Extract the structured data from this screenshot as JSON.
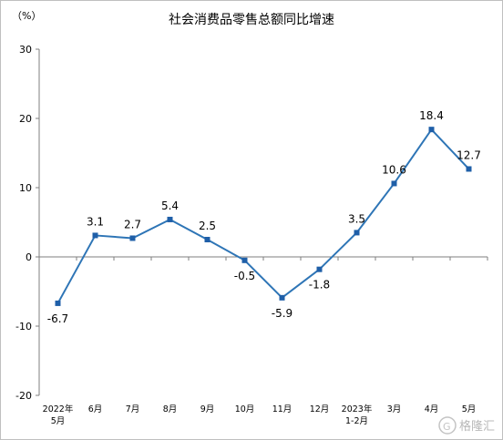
{
  "chart_data": {
    "type": "line",
    "title": "社会消费品零售总额同比增速",
    "unit_label": "（%）",
    "categories": [
      [
        "2022年",
        "5月"
      ],
      [
        "6月"
      ],
      [
        "7月"
      ],
      [
        "8月"
      ],
      [
        "9月"
      ],
      [
        "10月"
      ],
      [
        "11月"
      ],
      [
        "12月"
      ],
      [
        "2023年",
        "1-2月"
      ],
      [
        "3月"
      ],
      [
        "4月"
      ],
      [
        "5月"
      ]
    ],
    "values": [
      -6.7,
      3.1,
      2.7,
      5.4,
      2.5,
      -0.5,
      -5.9,
      -1.8,
      3.5,
      10.6,
      18.4,
      12.7
    ],
    "data_labels": [
      "-6.7",
      "3.1",
      "2.7",
      "5.4",
      "2.5",
      "-0.5",
      "-5.9",
      "-1.8",
      "3.5",
      "10.6",
      "18.4",
      "12.7"
    ],
    "ylim": [
      -20,
      30
    ],
    "yticks": [
      -20,
      -10,
      0,
      10,
      20,
      30
    ],
    "grid": false,
    "line_color": "#2e75b6",
    "marker_color": "#1f5fa8"
  },
  "watermark": "格隆汇"
}
